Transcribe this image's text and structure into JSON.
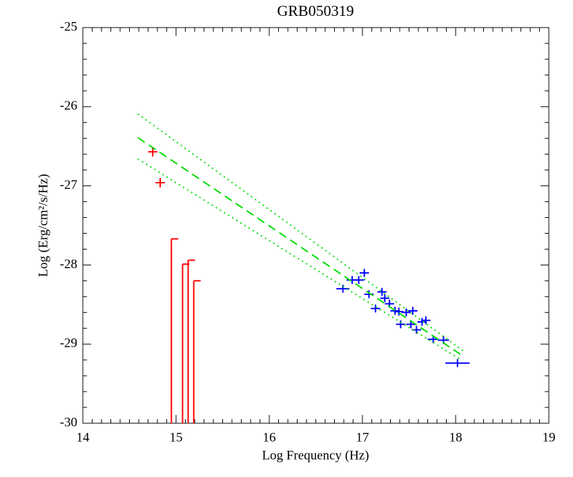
{
  "chart_data": {
    "type": "scatter",
    "title": "GRB050319",
    "x_label": "Log Frequency (Hz)",
    "y_label": "Log (Erg/cm²/s/Hz)",
    "xlim": [
      14,
      19
    ],
    "ylim": [
      -30,
      -25
    ],
    "xticks": [
      14,
      15,
      16,
      17,
      18,
      19
    ],
    "yticks": [
      -25,
      -26,
      -27,
      -28,
      -29,
      -30
    ],
    "x_minor": 10,
    "y_minor": 5,
    "series": [
      {
        "kind": "points",
        "color": "#ff0000",
        "x": [
          14.75,
          14.83
        ],
        "values": [
          -26.57,
          -26.96
        ],
        "xerr": [
          0.05,
          0.05
        ],
        "yerr": 0.06
      },
      {
        "kind": "upper_limit",
        "color": "#ff0000",
        "x": [
          14.95,
          15.07,
          15.13,
          15.19
        ],
        "values": [
          -27.67,
          -27.99,
          -27.94,
          -28.2
        ]
      },
      {
        "kind": "points",
        "color": "#0000ff",
        "x": [
          16.79,
          16.89,
          16.96,
          17.02,
          17.07,
          17.14,
          17.21,
          17.24,
          17.29,
          17.35,
          17.39,
          17.41,
          17.47,
          17.52,
          17.54,
          17.58,
          17.64,
          17.68,
          17.76,
          17.87,
          18.02
        ],
        "values": [
          -28.3,
          -28.19,
          -28.19,
          -28.1,
          -28.37,
          -28.55,
          -28.34,
          -28.42,
          -28.49,
          -28.58,
          -28.59,
          -28.75,
          -28.6,
          -28.75,
          -28.58,
          -28.82,
          -28.72,
          -28.7,
          -28.94,
          -28.95,
          -29.24
        ],
        "xerr": [
          0.07,
          0.06,
          0.06,
          0.05,
          0.05,
          0.05,
          0.05,
          0.05,
          0.05,
          0.05,
          0.05,
          0.05,
          0.05,
          0.05,
          0.05,
          0.05,
          0.05,
          0.05,
          0.06,
          0.06,
          0.13
        ],
        "yerr": 0.05
      },
      {
        "kind": "line",
        "color": "#00dd00",
        "dash": "dashed",
        "x": [
          14.59,
          18.09
        ],
        "values": [
          -26.39,
          -29.16
        ]
      },
      {
        "kind": "line",
        "color": "#00dd00",
        "dash": "dotted",
        "x": [
          14.59,
          18.11
        ],
        "values": [
          -26.09,
          -29.11
        ]
      },
      {
        "kind": "line",
        "color": "#00dd00",
        "dash": "dotted",
        "x": [
          14.59,
          18.06
        ],
        "values": [
          -26.66,
          -29.2
        ]
      }
    ]
  }
}
